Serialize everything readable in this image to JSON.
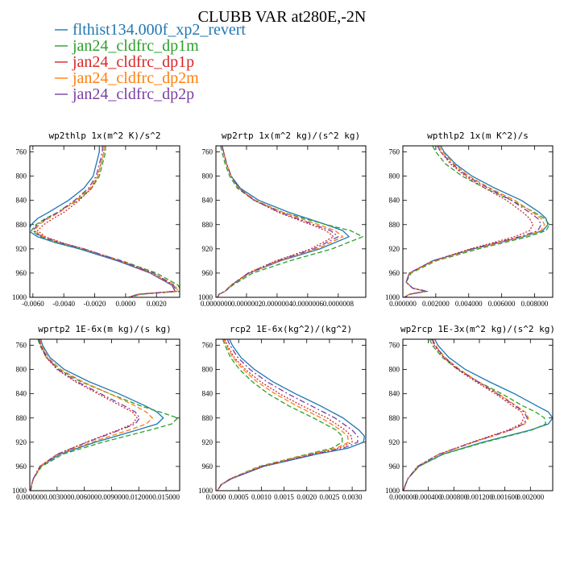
{
  "figure": {
    "title": "CLUBB VAR at280E,-2N"
  },
  "legend": [
    {
      "name": "flthist134.000f_xp2_revert",
      "color": "#1f77b4",
      "dash": "solid"
    },
    {
      "name": "jan24_cldfrc_dp1m",
      "color": "#2ca02c",
      "dash": "dashed"
    },
    {
      "name": "jan24_cldfrc_dp1p",
      "color": "#d62728",
      "dash": "dotted"
    },
    {
      "name": "jan24_cldfrc_dp2m",
      "color": "#ff7f0e",
      "dash": "dashed"
    },
    {
      "name": "jan24_cldfrc_dp2p",
      "color": "#7b3fa0",
      "dash": "dashdot"
    }
  ],
  "chart_data": [
    {
      "type": "line",
      "title": "wp2thlp  1x(m^2 K)/s^2",
      "ylim": [
        1000,
        750
      ],
      "yticks": [
        760,
        800,
        840,
        880,
        920,
        960,
        1000
      ],
      "xlim": [
        -0.0062,
        0.0035
      ],
      "xticks": [
        -0.006,
        -0.004,
        -0.002,
        0.0,
        0.002
      ],
      "xticklabels": [
        "-0.0060",
        "-0.0040",
        "-0.0020",
        "0.0000",
        "0.0020"
      ],
      "y": [
        750,
        760,
        780,
        800,
        820,
        840,
        860,
        870,
        880,
        890,
        900,
        910,
        920,
        940,
        960,
        980,
        990,
        995,
        1000
      ],
      "series": [
        {
          "name": "flthist134.000f_xp2_revert",
          "values": [
            -0.0017,
            -0.0017,
            -0.0019,
            -0.0021,
            -0.0027,
            -0.0037,
            -0.005,
            -0.0057,
            -0.0061,
            -0.0063,
            -0.0057,
            -0.0045,
            -0.003,
            -0.0005,
            0.0016,
            0.003,
            0.0032,
            0.0008,
            0.0002
          ]
        },
        {
          "name": "jan24_cldfrc_dp1m",
          "values": [
            -0.0013,
            -0.0013,
            -0.0015,
            -0.0017,
            -0.0022,
            -0.0031,
            -0.0044,
            -0.0052,
            -0.0058,
            -0.0061,
            -0.0055,
            -0.0043,
            -0.0028,
            -0.0002,
            0.002,
            0.0034,
            0.0036,
            0.001,
            0.0003
          ]
        },
        {
          "name": "jan24_cldfrc_dp1p",
          "values": [
            -0.0014,
            -0.0014,
            -0.0016,
            -0.0018,
            -0.0022,
            -0.003,
            -0.004,
            -0.0047,
            -0.0053,
            -0.0057,
            -0.0052,
            -0.0041,
            -0.0027,
            -0.0004,
            0.0016,
            0.003,
            0.0032,
            0.0008,
            0.0002
          ]
        },
        {
          "name": "jan24_cldfrc_dp2m",
          "values": [
            -0.0014,
            -0.0014,
            -0.0016,
            -0.0018,
            -0.0023,
            -0.0032,
            -0.0043,
            -0.005,
            -0.0056,
            -0.0059,
            -0.0053,
            -0.0042,
            -0.0027,
            -0.0003,
            0.0018,
            0.0032,
            0.0034,
            0.0009,
            0.0002
          ]
        },
        {
          "name": "jan24_cldfrc_dp2p",
          "values": [
            -0.0015,
            -0.0015,
            -0.0017,
            -0.0019,
            -0.0024,
            -0.0033,
            -0.0044,
            -0.0051,
            -0.0057,
            -0.006,
            -0.0054,
            -0.0042,
            -0.0027,
            -0.0003,
            0.0018,
            0.0031,
            0.0033,
            0.0008,
            0.0002
          ]
        }
      ]
    },
    {
      "type": "line",
      "title": "wp2rtp  1x(m^2 kg)/(s^2 kg)",
      "ylim": [
        1000,
        750
      ],
      "yticks": [
        760,
        800,
        840,
        880,
        920,
        960,
        1000
      ],
      "xlim": [
        0.0,
        9.8e-07
      ],
      "xticks": [
        0.0,
        2e-07,
        4e-07,
        6e-07,
        8e-07
      ],
      "xticklabels": [
        "0.0000000",
        "0.0000002",
        "0.0000004",
        "0.0000006",
        "0.0000008"
      ],
      "y": [
        750,
        760,
        780,
        800,
        820,
        840,
        860,
        880,
        890,
        900,
        920,
        940,
        960,
        980,
        990,
        995,
        1000
      ],
      "series": [
        {
          "name": "flthist134.000f_xp2_revert",
          "values": [
            4e-08,
            5e-08,
            7e-08,
            1e-07,
            1.6e-07,
            2.8e-07,
            4.8e-07,
            7.2e-07,
            8.3e-07,
            8.7e-07,
            6.8e-07,
            4.2e-07,
            2.2e-07,
            1e-07,
            6e-08,
            2e-08,
            1e-08
          ]
        },
        {
          "name": "jan24_cldfrc_dp1m",
          "values": [
            3e-08,
            4e-08,
            6e-08,
            9e-08,
            1.4e-07,
            2.5e-07,
            4.4e-07,
            7.2e-07,
            8.8e-07,
            9.6e-07,
            7.6e-07,
            4.8e-07,
            2.4e-07,
            1.1e-07,
            6e-08,
            2e-08,
            1e-08
          ]
        },
        {
          "name": "jan24_cldfrc_dp1p",
          "values": [
            4e-08,
            5e-08,
            7e-08,
            1e-07,
            1.5e-07,
            2.5e-07,
            4.1e-07,
            6.2e-07,
            7.2e-07,
            7.7e-07,
            6.2e-07,
            3.9e-07,
            2.1e-07,
            1e-07,
            6e-08,
            2e-08,
            1e-08
          ]
        },
        {
          "name": "jan24_cldfrc_dp2m",
          "values": [
            4e-08,
            5e-08,
            7e-08,
            1e-07,
            1.5e-07,
            2.6e-07,
            4.4e-07,
            6.7e-07,
            7.8e-07,
            8.3e-07,
            6.6e-07,
            4.1e-07,
            2.2e-07,
            1e-07,
            6e-08,
            2e-08,
            1e-08
          ]
        },
        {
          "name": "jan24_cldfrc_dp2p",
          "values": [
            4e-08,
            5e-08,
            7e-08,
            1e-07,
            1.5e-07,
            2.5e-07,
            4.2e-07,
            6.4e-07,
            7.5e-07,
            8e-07,
            6.4e-07,
            4e-07,
            2.1e-07,
            1e-07,
            6e-08,
            2e-08,
            1e-08
          ]
        }
      ]
    },
    {
      "type": "line",
      "title": "wpthlp2  1x(m K^2)/s",
      "ylim": [
        1000,
        750
      ],
      "yticks": [
        760,
        800,
        840,
        880,
        920,
        960,
        1000
      ],
      "xlim": [
        0.0,
        0.0091
      ],
      "xticks": [
        0.0,
        0.002,
        0.004,
        0.006,
        0.008
      ],
      "xticklabels": [
        "0.000000",
        "0.002000",
        "0.004000",
        "0.006000",
        "0.008000"
      ],
      "y": [
        750,
        760,
        780,
        800,
        820,
        840,
        860,
        870,
        880,
        890,
        900,
        920,
        940,
        960,
        975,
        985,
        990,
        995,
        1000
      ],
      "series": [
        {
          "name": "flthist134.000f_xp2_revert",
          "values": [
            0.0023,
            0.0025,
            0.0032,
            0.0042,
            0.0056,
            0.0072,
            0.0083,
            0.0087,
            0.0088,
            0.0085,
            0.0073,
            0.0043,
            0.0018,
            0.0004,
            0.0002,
            0.0006,
            0.0014,
            0.0004,
            0.0001
          ]
        },
        {
          "name": "jan24_cldfrc_dp1m",
          "values": [
            0.0018,
            0.002,
            0.0026,
            0.0036,
            0.005,
            0.0066,
            0.008,
            0.0086,
            0.0089,
            0.0087,
            0.0076,
            0.0046,
            0.002,
            0.0005,
            0.0002,
            0.0006,
            0.0015,
            0.0004,
            0.0001
          ]
        },
        {
          "name": "jan24_cldfrc_dp1p",
          "values": [
            0.0021,
            0.0023,
            0.0029,
            0.0038,
            0.005,
            0.0063,
            0.0073,
            0.0077,
            0.0079,
            0.0077,
            0.0068,
            0.0041,
            0.0018,
            0.0004,
            0.0002,
            0.0006,
            0.0014,
            0.0004,
            0.0001
          ]
        },
        {
          "name": "jan24_cldfrc_dp2m",
          "values": [
            0.0022,
            0.0024,
            0.0031,
            0.004,
            0.0053,
            0.0068,
            0.0079,
            0.0084,
            0.0086,
            0.0084,
            0.0073,
            0.0043,
            0.0019,
            0.0004,
            0.0002,
            0.0006,
            0.0014,
            0.0004,
            0.0001
          ]
        },
        {
          "name": "jan24_cldfrc_dp2p",
          "values": [
            0.0021,
            0.0023,
            0.003,
            0.0039,
            0.0052,
            0.0066,
            0.0077,
            0.0082,
            0.0084,
            0.0082,
            0.0071,
            0.0042,
            0.0018,
            0.0004,
            0.0002,
            0.0006,
            0.0014,
            0.0004,
            0.0001
          ]
        }
      ]
    },
    {
      "type": "line",
      "title": "wprtp2  1E-6x(m kg)/(s kg)",
      "ylim": [
        1000,
        750
      ],
      "yticks": [
        760,
        800,
        840,
        880,
        920,
        960,
        1000
      ],
      "xlim": [
        0.0,
        0.0165
      ],
      "xticks": [
        0.0,
        0.003,
        0.006,
        0.009,
        0.012,
        0.015
      ],
      "xticklabels": [
        "0.000000",
        "0.003000",
        "0.006000",
        "0.009000",
        "0.012000",
        "0.015000"
      ],
      "y": [
        750,
        760,
        780,
        800,
        820,
        840,
        860,
        870,
        880,
        890,
        900,
        920,
        940,
        960,
        980,
        990,
        1000
      ],
      "series": [
        {
          "name": "flthist134.000f_xp2_revert",
          "values": [
            0.0012,
            0.0014,
            0.0022,
            0.0038,
            0.0065,
            0.0098,
            0.0127,
            0.014,
            0.0147,
            0.014,
            0.0118,
            0.0072,
            0.0033,
            0.0012,
            0.0004,
            0.0002,
            0.0001
          ]
        },
        {
          "name": "jan24_cldfrc_dp1m",
          "values": [
            0.0009,
            0.0011,
            0.0018,
            0.0032,
            0.0056,
            0.0088,
            0.0122,
            0.0143,
            0.0163,
            0.0156,
            0.0132,
            0.008,
            0.0036,
            0.0013,
            0.0004,
            0.0002,
            0.0001
          ]
        },
        {
          "name": "jan24_cldfrc_dp1p",
          "values": [
            0.001,
            0.0012,
            0.0018,
            0.003,
            0.005,
            0.0075,
            0.01,
            0.0113,
            0.0118,
            0.0113,
            0.0097,
            0.0062,
            0.003,
            0.0011,
            0.0004,
            0.0002,
            0.0001
          ]
        },
        {
          "name": "jan24_cldfrc_dp2m",
          "values": [
            0.0011,
            0.0013,
            0.002,
            0.0034,
            0.0058,
            0.0088,
            0.0116,
            0.0128,
            0.0135,
            0.0128,
            0.0109,
            0.0068,
            0.0031,
            0.0012,
            0.0004,
            0.0002,
            0.0001
          ]
        },
        {
          "name": "jan24_cldfrc_dp2p",
          "values": [
            0.001,
            0.0012,
            0.0019,
            0.0031,
            0.0052,
            0.0078,
            0.0104,
            0.0116,
            0.0121,
            0.0116,
            0.0099,
            0.0063,
            0.003,
            0.0011,
            0.0004,
            0.0002,
            0.0001
          ]
        }
      ]
    },
    {
      "type": "line",
      "title": "rcp2  1E-6x(kg^2)/(kg^2)",
      "ylim": [
        1000,
        750
      ],
      "yticks": [
        760,
        800,
        840,
        880,
        920,
        960,
        1000
      ],
      "xlim": [
        0.0,
        0.0033
      ],
      "xticks": [
        0.0,
        0.0005,
        0.001,
        0.0015,
        0.002,
        0.0025,
        0.003
      ],
      "xticklabels": [
        "0.0000",
        "0.0005",
        "0.0010",
        "0.0015",
        "0.0020",
        "0.0025",
        "0.0030"
      ],
      "y": [
        750,
        760,
        780,
        800,
        820,
        840,
        860,
        880,
        900,
        910,
        920,
        930,
        940,
        960,
        980,
        990,
        1000
      ],
      "series": [
        {
          "name": "flthist134.000f_xp2_revert",
          "values": [
            0.0003,
            0.00036,
            0.00055,
            0.00085,
            0.00125,
            0.00175,
            0.0023,
            0.0028,
            0.00315,
            0.00327,
            0.00325,
            0.0029,
            0.0022,
            0.00105,
            0.00035,
            0.00012,
            3e-05
          ]
        },
        {
          "name": "jan24_cldfrc_dp1m",
          "values": [
            0.00015,
            0.0002,
            0.00032,
            0.00052,
            0.0008,
            0.00115,
            0.0016,
            0.00215,
            0.00265,
            0.00278,
            0.00278,
            0.00255,
            0.002,
            0.00095,
            0.00032,
            0.00011,
            3e-05
          ]
        },
        {
          "name": "jan24_cldfrc_dp1p",
          "values": [
            0.0002,
            0.00025,
            0.0004,
            0.00065,
            0.00098,
            0.0014,
            0.0019,
            0.00245,
            0.00285,
            0.00298,
            0.003,
            0.0027,
            0.00208,
            0.001,
            0.00034,
            0.00012,
            3e-05
          ]
        },
        {
          "name": "jan24_cldfrc_dp2m",
          "values": [
            0.00018,
            0.00023,
            0.00037,
            0.0006,
            0.0009,
            0.0013,
            0.00178,
            0.00232,
            0.00275,
            0.0029,
            0.00292,
            0.00265,
            0.00205,
            0.00098,
            0.00033,
            0.00011,
            3e-05
          ]
        },
        {
          "name": "jan24_cldfrc_dp2p",
          "values": [
            0.00025,
            0.00031,
            0.00048,
            0.00075,
            0.00112,
            0.00158,
            0.0021,
            0.00262,
            0.003,
            0.00312,
            0.00312,
            0.0028,
            0.00214,
            0.00102,
            0.00034,
            0.00012,
            3e-05
          ]
        }
      ]
    },
    {
      "type": "line",
      "title": "wp2rcp  1E-3x(m^2 kg)/(s^2 kg)",
      "ylim": [
        1000,
        750
      ],
      "yticks": [
        760,
        800,
        840,
        880,
        920,
        960,
        1000
      ],
      "xlim": [
        0.0,
        0.00235
      ],
      "xticks": [
        0.0,
        0.0004,
        0.0008,
        0.0012,
        0.0016,
        0.002
      ],
      "xticklabels": [
        "0.000000",
        "0.000400",
        "0.000800",
        "0.001200",
        "0.001600",
        "0.002000"
      ],
      "y": [
        750,
        760,
        780,
        800,
        820,
        840,
        860,
        870,
        880,
        890,
        900,
        920,
        940,
        960,
        980,
        990,
        1000
      ],
      "series": [
        {
          "name": "flthist134.000f_xp2_revert",
          "values": [
            0.0005,
            0.00055,
            0.00072,
            0.00098,
            0.00135,
            0.00175,
            0.0021,
            0.00228,
            0.00235,
            0.00228,
            0.002,
            0.00125,
            0.00062,
            0.00025,
            8e-05,
            4e-05,
            1e-05
          ]
        },
        {
          "name": "jan24_cldfrc_dp1m",
          "values": [
            0.00042,
            0.00046,
            0.00062,
            0.00086,
            0.00118,
            0.00155,
            0.00188,
            0.00208,
            0.00222,
            0.00224,
            0.00202,
            0.00128,
            0.00063,
            0.00025,
            8e-05,
            4e-05,
            1e-05
          ]
        },
        {
          "name": "jan24_cldfrc_dp1p",
          "values": [
            0.00045,
            0.00049,
            0.00064,
            0.00086,
            0.00114,
            0.00145,
            0.00172,
            0.00186,
            0.0019,
            0.00185,
            0.00165,
            0.00108,
            0.00056,
            0.00023,
            8e-05,
            4e-05,
            1e-05
          ]
        },
        {
          "name": "jan24_cldfrc_dp2m",
          "values": [
            0.00047,
            0.00051,
            0.00066,
            0.00089,
            0.00118,
            0.0015,
            0.00178,
            0.00192,
            0.00197,
            0.00191,
            0.0017,
            0.00111,
            0.00057,
            0.00023,
            8e-05,
            4e-05,
            1e-05
          ]
        },
        {
          "name": "jan24_cldfrc_dp2p",
          "values": [
            0.00046,
            0.0005,
            0.00065,
            0.00088,
            0.00117,
            0.00148,
            0.00176,
            0.0019,
            0.00195,
            0.00189,
            0.00168,
            0.0011,
            0.00056,
            0.00023,
            8e-05,
            4e-05,
            1e-05
          ]
        }
      ]
    }
  ]
}
